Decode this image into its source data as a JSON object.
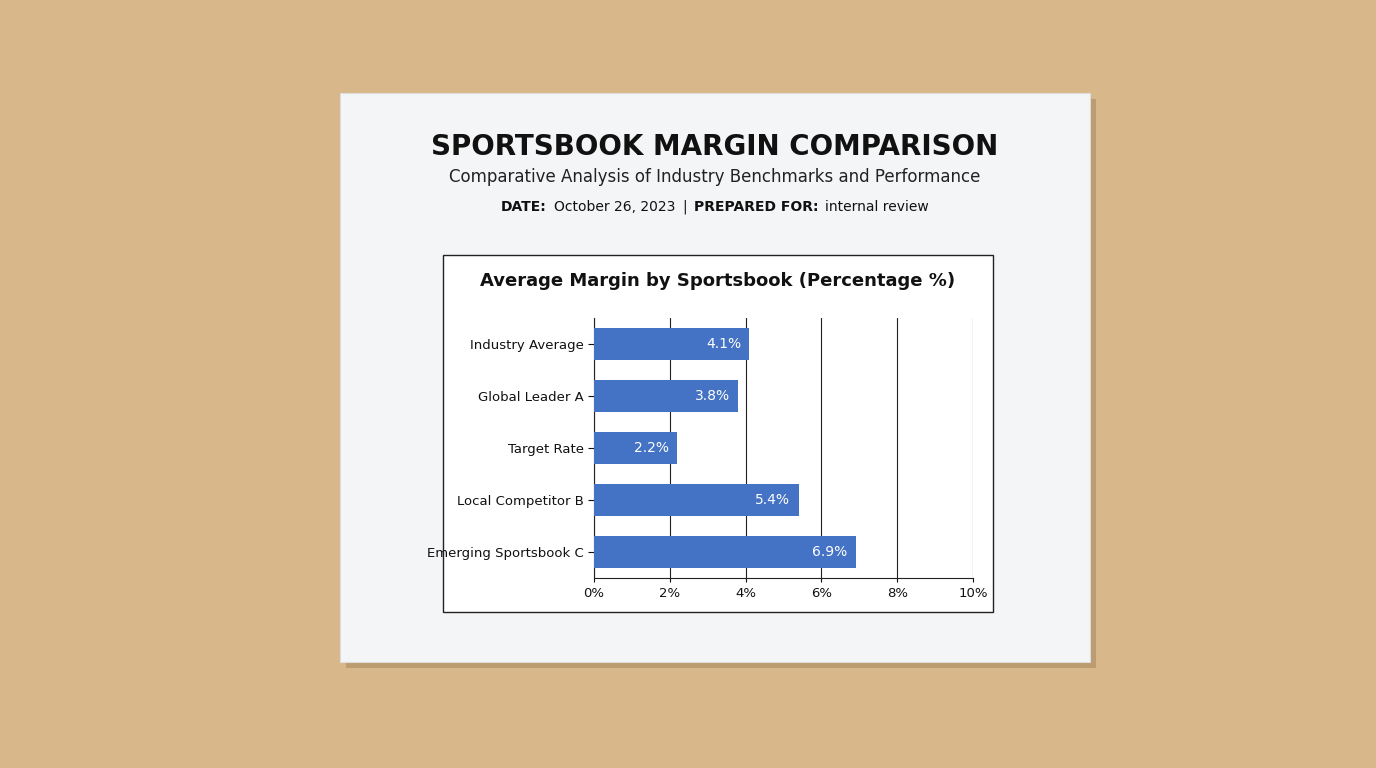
{
  "header": {
    "title": "SPORTSBOOK MARGIN COMPARISON",
    "subtitle": "Comparative Analysis of Industry Benchmarks and Performance",
    "meta": [
      [
        "DATE:",
        "October 26, 2023"
      ],
      [
        "PREPARED FOR:",
        "internal review"
      ]
    ],
    "separator": "|"
  },
  "chart_data": {
    "type": "bar",
    "orientation": "horizontal",
    "title": "Average Margin by Sportsbook (Percentage %)",
    "categories": [
      "Industry Average",
      "Global Leader A",
      "Target Rate",
      "Local Competitor B",
      "Emerging Sportsbook C"
    ],
    "values": [
      4.1,
      3.8,
      2.2,
      5.4,
      6.9
    ],
    "value_labels": [
      "4.1%",
      "3.8%",
      "2.2%",
      "5.4%",
      "6.9%"
    ],
    "data_labels": true,
    "color": "#4472c4",
    "xlim": [
      0,
      10
    ],
    "xticks": [
      {
        "value": 0,
        "label": "0%"
      },
      {
        "value": 2,
        "label": "2%"
      },
      {
        "value": 4,
        "label": "4%"
      },
      {
        "value": 6,
        "label": "6%"
      },
      {
        "value": 8,
        "label": "8%"
      },
      {
        "value": 10,
        "label": "10%"
      }
    ],
    "grid": true
  }
}
